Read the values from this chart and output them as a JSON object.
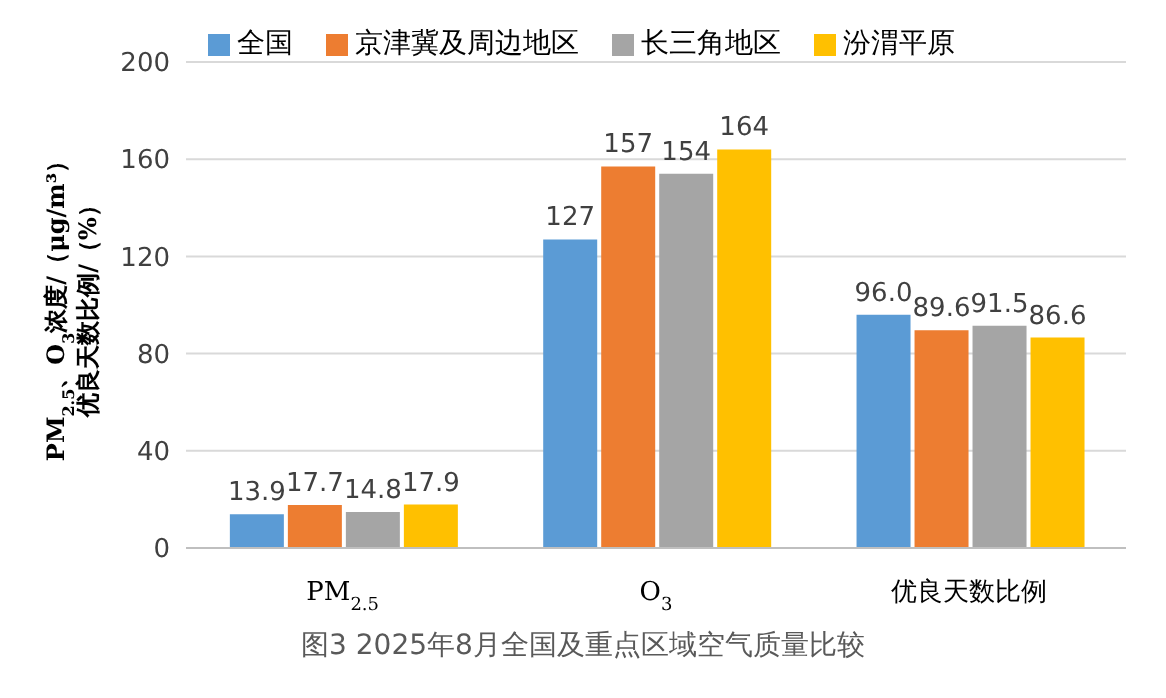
{
  "chart_data": {
    "type": "bar",
    "title": "图3  2025年8月全国及重点区域空气质量比较",
    "ylabel": "PM$_{2.5}$、O$_{3}$浓度/（μg/m³）优良天数比例/（%）",
    "categories": [
      "PM$_{2.5}$",
      "O$_{3}$",
      "优良天数比例"
    ],
    "series": [
      {
        "name": "全国",
        "color": "#5b9bd5",
        "values": [
          13.9,
          127,
          96.0
        ],
        "value_labels": [
          "13.9",
          "127",
          "96.0"
        ]
      },
      {
        "name": "京津冀及周边地区",
        "color": "#ed7d31",
        "values": [
          17.7,
          157,
          89.6
        ],
        "value_labels": [
          "17.7",
          "157",
          "89.6"
        ]
      },
      {
        "name": "长三角地区",
        "color": "#a5a5a5",
        "values": [
          14.8,
          154,
          91.5
        ],
        "value_labels": [
          "14.8",
          "154",
          "91.5"
        ]
      },
      {
        "name": "汾渭平原",
        "color": "#ffc000",
        "values": [
          17.9,
          164,
          86.6
        ],
        "value_labels": [
          "17.9",
          "164",
          "86.6"
        ]
      }
    ],
    "ylim": [
      0,
      200
    ],
    "yticks": [
      0,
      40,
      80,
      120,
      160,
      200
    ],
    "grid": "y",
    "legend": "top"
  }
}
